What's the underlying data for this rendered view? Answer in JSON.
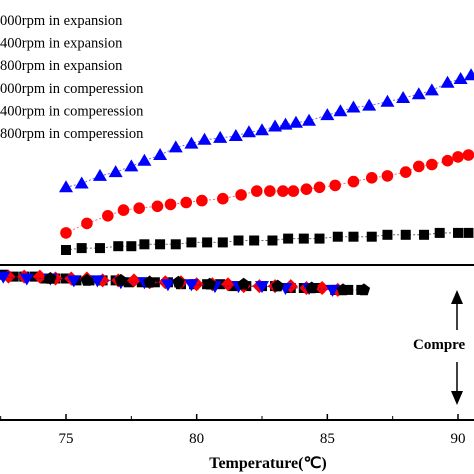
{
  "chart_data": {
    "type": "scatter",
    "xlabel": "Temperature(℃)",
    "ylabel": "",
    "x_ticks": [
      "75",
      "80",
      "85",
      "90"
    ],
    "xlim": [
      72.2,
      90.7
    ],
    "grid": false,
    "legend_placement": "top-left",
    "annotations": [
      {
        "text": "Compre"
      }
    ],
    "series": [
      {
        "name": "000rpm in expansion",
        "marker": "square",
        "color": "#000000",
        "x": [
          75.0,
          75.6,
          76.3,
          77.0,
          77.5,
          78.0,
          78.6,
          79.2,
          79.8,
          80.4,
          81.0,
          81.6,
          82.2,
          82.9,
          83.5,
          84.1,
          84.7,
          85.4,
          86.0,
          86.7,
          87.3,
          88.0,
          88.7,
          89.3,
          90.0,
          90.4
        ],
        "y": [
          0.6,
          0.61,
          0.61,
          0.62,
          0.62,
          0.63,
          0.63,
          0.63,
          0.64,
          0.64,
          0.64,
          0.65,
          0.65,
          0.65,
          0.66,
          0.66,
          0.66,
          0.67,
          0.67,
          0.67,
          0.68,
          0.68,
          0.68,
          0.69,
          0.69,
          0.69
        ]
      },
      {
        "name": "400rpm in expansion",
        "marker": "circle",
        "color": "#ff0000",
        "x": [
          75.0,
          75.8,
          76.6,
          77.2,
          77.8,
          78.5,
          79.0,
          79.6,
          80.2,
          81.0,
          81.7,
          82.3,
          82.8,
          83.3,
          83.7,
          84.2,
          84.7,
          85.3,
          86.0,
          86.7,
          87.3,
          88.0,
          88.5,
          89.0,
          89.6,
          90.0,
          90.4
        ],
        "y": [
          0.69,
          0.74,
          0.78,
          0.81,
          0.82,
          0.83,
          0.84,
          0.85,
          0.86,
          0.87,
          0.89,
          0.91,
          0.91,
          0.91,
          0.91,
          0.92,
          0.93,
          0.94,
          0.96,
          0.98,
          0.99,
          1.01,
          1.04,
          1.05,
          1.07,
          1.09,
          1.1
        ]
      },
      {
        "name": "800rpm in expansion",
        "marker": "triangle-up",
        "color": "#0000ff",
        "x": [
          75.0,
          75.6,
          76.3,
          76.9,
          77.5,
          78.0,
          78.6,
          79.2,
          79.8,
          80.3,
          80.9,
          81.5,
          82.0,
          82.5,
          83.0,
          83.4,
          83.8,
          84.3,
          85.0,
          85.5,
          86.0,
          86.6,
          87.3,
          87.9,
          88.5,
          89.0,
          89.6,
          90.1,
          90.5
        ],
        "y": [
          0.93,
          0.95,
          0.99,
          1.01,
          1.04,
          1.07,
          1.1,
          1.14,
          1.16,
          1.18,
          1.19,
          1.2,
          1.22,
          1.23,
          1.25,
          1.26,
          1.27,
          1.28,
          1.31,
          1.33,
          1.35,
          1.36,
          1.38,
          1.4,
          1.42,
          1.44,
          1.48,
          1.5,
          1.52
        ]
      },
      {
        "name": "000rpm in comperession",
        "marker": "square",
        "color": "#000000",
        "x": [
          72.2,
          72.6,
          73.0,
          73.4,
          73.8,
          74.2,
          74.6,
          75.0,
          75.4,
          75.9,
          76.4,
          76.9,
          77.4,
          77.9,
          78.4,
          78.9,
          79.4,
          79.9,
          80.4,
          80.9,
          81.4,
          81.9,
          82.5,
          83.0,
          83.6,
          84.1,
          84.7,
          85.3,
          85.8,
          86.3
        ],
        "y": [
          0.47,
          0.47,
          0.46,
          0.46,
          0.46,
          0.45,
          0.45,
          0.45,
          0.44,
          0.44,
          0.44,
          0.44,
          0.43,
          0.43,
          0.43,
          0.43,
          0.42,
          0.42,
          0.42,
          0.42,
          0.41,
          0.41,
          0.41,
          0.41,
          0.4,
          0.4,
          0.4,
          0.39,
          0.39,
          0.39
        ]
      },
      {
        "name": "400rpm in comperession",
        "marker": "diamond",
        "color": "#ff0000",
        "x": [
          72.2,
          72.8,
          73.4,
          74.0,
          74.6,
          75.2,
          75.8,
          76.4,
          77.0,
          77.6,
          78.2,
          78.8,
          79.4,
          80.0,
          80.6,
          81.2,
          81.8,
          82.4,
          83.0,
          83.6,
          84.2,
          84.8,
          85.4
        ],
        "y": [
          0.47,
          0.46,
          0.46,
          0.46,
          0.45,
          0.45,
          0.45,
          0.44,
          0.44,
          0.44,
          0.43,
          0.43,
          0.43,
          0.42,
          0.42,
          0.42,
          0.41,
          0.41,
          0.41,
          0.41,
          0.4,
          0.4,
          0.39
        ]
      },
      {
        "name": "800rpm in comperession",
        "marker": "triangle-down",
        "color": "#0000ff",
        "x": [
          72.6,
          73.5,
          74.4,
          75.3,
          76.2,
          77.1,
          78.0,
          78.9,
          79.8,
          80.7,
          81.6,
          82.5,
          83.4,
          84.3,
          85.2
        ],
        "y": [
          0.46,
          0.45,
          0.45,
          0.44,
          0.44,
          0.43,
          0.43,
          0.42,
          0.42,
          0.41,
          0.41,
          0.41,
          0.4,
          0.4,
          0.39
        ]
      }
    ],
    "extra_series": [
      {
        "marker": "pentagon",
        "color": "#000000",
        "x": [
          74.4,
          75.8,
          77.1,
          78.2,
          79.3,
          80.5,
          81.8,
          83.1,
          84.4,
          85.6,
          86.4
        ],
        "y": [
          0.45,
          0.44,
          0.44,
          0.43,
          0.43,
          0.42,
          0.42,
          0.41,
          0.4,
          0.39,
          0.39
        ]
      }
    ]
  }
}
